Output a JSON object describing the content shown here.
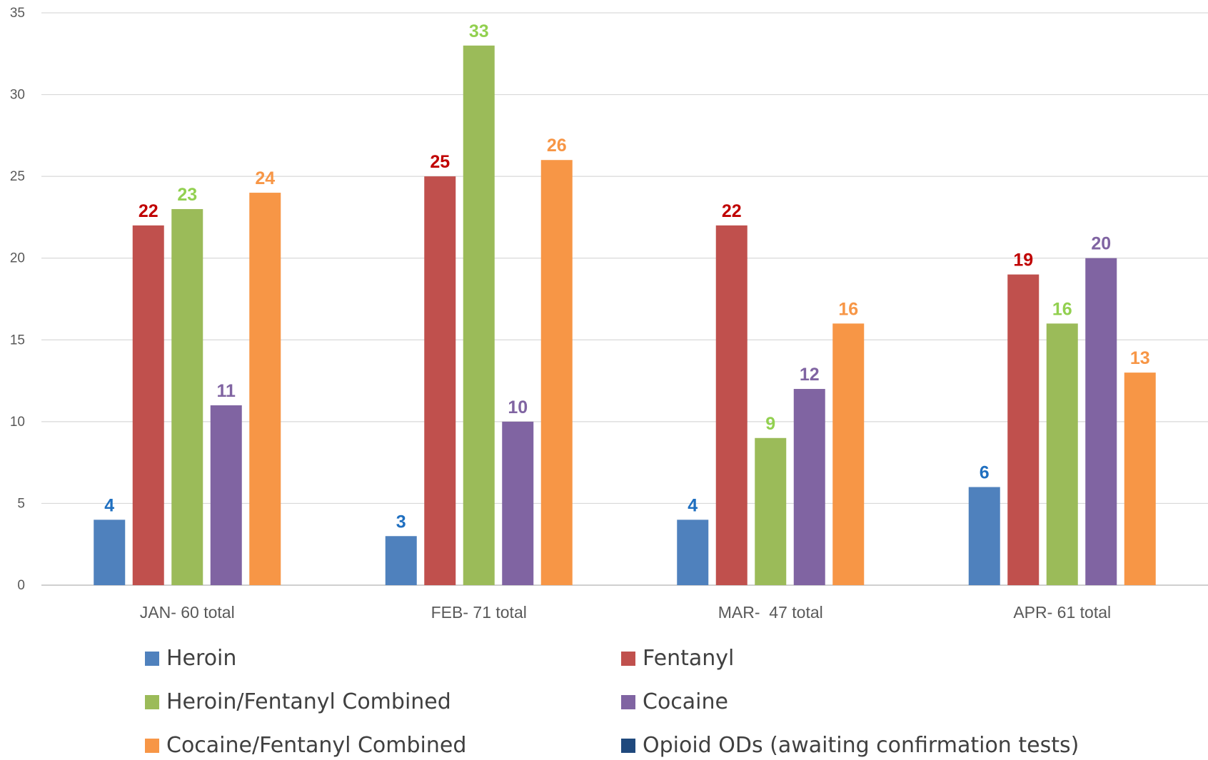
{
  "chart_data": {
    "type": "bar",
    "categories": [
      "JAN- 60 total",
      "FEB- 71 total",
      "MAR-  47 total",
      "APR- 61 total"
    ],
    "ylim": [
      0,
      35
    ],
    "yticks": [
      0,
      5,
      10,
      15,
      20,
      25,
      30,
      35
    ],
    "grid": true,
    "legend_position": "bottom",
    "series": [
      {
        "name": "Heroin",
        "color": "#4F81BD",
        "label_color": "#1F6FC0",
        "values": [
          4,
          3,
          4,
          6
        ]
      },
      {
        "name": "Fentanyl",
        "color": "#C0504D",
        "label_color": "#C00000",
        "values": [
          22,
          25,
          22,
          19
        ]
      },
      {
        "name": "Heroin/Fentanyl Combined",
        "color": "#9BBB59",
        "label_color": "#92D050",
        "values": [
          23,
          33,
          9,
          16
        ]
      },
      {
        "name": "Cocaine",
        "color": "#8064A2",
        "label_color": "#8064A2",
        "values": [
          11,
          10,
          12,
          20
        ]
      },
      {
        "name": "Cocaine/Fentanyl Combined",
        "color": "#F79646",
        "label_color": "#F79646",
        "values": [
          24,
          26,
          16,
          13
        ]
      },
      {
        "name": "Opioid ODs (awaiting confirmation tests)",
        "color": "#1F497D",
        "label_color": "#1F497D",
        "values": [
          null,
          null,
          null,
          null
        ]
      }
    ]
  },
  "legend": {
    "items": [
      {
        "label": "Heroin",
        "color": "#4F81BD"
      },
      {
        "label": "Fentanyl",
        "color": "#C0504D"
      },
      {
        "label": "Heroin/Fentanyl Combined",
        "color": "#9BBB59"
      },
      {
        "label": "Cocaine",
        "color": "#8064A2"
      },
      {
        "label": "Cocaine/Fentanyl Combined",
        "color": "#F79646"
      },
      {
        "label": "Opioid ODs (awaiting confirmation tests)",
        "color": "#1F497D"
      }
    ]
  }
}
